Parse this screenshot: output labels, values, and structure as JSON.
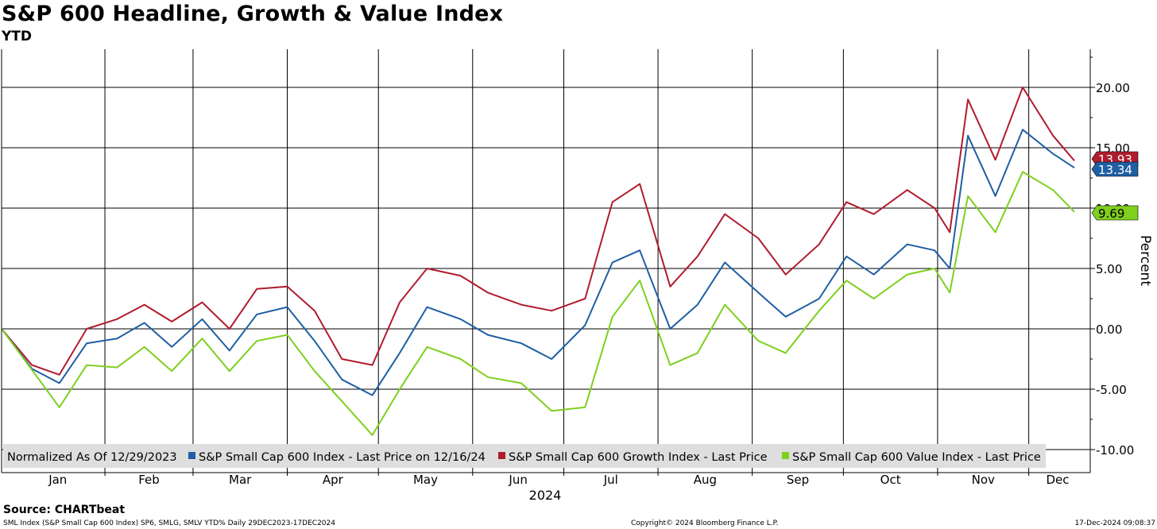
{
  "header": {
    "title": "S&P 600 Headline, Growth & Value Index",
    "subtitle": "YTD"
  },
  "footer": {
    "source": "Source: CHARTbeat",
    "left_note": "SML Index (S&P Small Cap 600 Index) SP6, SMLG, SMLV YTD%  Daily 29DEC2023-17DEC2024",
    "copyright": "Copyright© 2024 Bloomberg Finance L.P.",
    "timestamp": "17-Dec-2024 09:08:37"
  },
  "chart_data": {
    "type": "line",
    "title": "S&P 600 Headline, Growth & Value Index",
    "subtitle": "YTD",
    "xlabel": "2024",
    "ylabel": "Percent",
    "ylim": [
      -10,
      20
    ],
    "y_ticks": [
      20,
      15,
      10,
      5,
      0,
      -5,
      -10
    ],
    "y_tick_labels": [
      "20.00",
      "15.00",
      "10.00",
      "5.00",
      "0.00",
      "-5.00",
      "-10.00"
    ],
    "months": [
      "Jan",
      "Feb",
      "Mar",
      "Apr",
      "May",
      "Jun",
      "Jul",
      "Aug",
      "Sep",
      "Oct",
      "Nov",
      "Dec"
    ],
    "grid": true,
    "legend_position": "bottom",
    "legend_note": "Normalized As Of 12/29/2023",
    "x_dates": [
      "2023-12-29",
      "2024-01-08",
      "2024-01-17",
      "2024-01-26",
      "2024-02-05",
      "2024-02-14",
      "2024-02-23",
      "2024-03-04",
      "2024-03-13",
      "2024-03-22",
      "2024-04-01",
      "2024-04-10",
      "2024-04-19",
      "2024-04-29",
      "2024-05-08",
      "2024-05-17",
      "2024-05-28",
      "2024-06-06",
      "2024-06-17",
      "2024-06-27",
      "2024-07-08",
      "2024-07-17",
      "2024-07-26",
      "2024-08-05",
      "2024-08-14",
      "2024-08-23",
      "2024-09-03",
      "2024-09-12",
      "2024-09-23",
      "2024-10-02",
      "2024-10-11",
      "2024-10-22",
      "2024-10-31",
      "2024-11-05",
      "2024-11-11",
      "2024-11-20",
      "2024-11-29",
      "2024-12-09",
      "2024-12-16"
    ],
    "series": [
      {
        "name": "S&P Small Cap 600 Index - Last Price on 12/16/24",
        "color": "#1f5fa3",
        "last_label": "13.34",
        "values": [
          0.0,
          -3.3,
          -4.5,
          -1.2,
          -0.8,
          0.5,
          -1.5,
          0.8,
          -1.8,
          1.2,
          1.8,
          -1.0,
          -4.2,
          -5.5,
          -2.0,
          1.8,
          0.8,
          -0.5,
          -1.2,
          -2.5,
          0.3,
          5.5,
          6.5,
          0.0,
          2.0,
          5.5,
          3.0,
          1.0,
          2.5,
          6.0,
          4.5,
          7.0,
          6.5,
          5.0,
          16.0,
          11.0,
          16.5,
          14.5,
          13.34
        ]
      },
      {
        "name": "S&P Small Cap 600 Growth Index - Last Price",
        "color": "#b01c2e",
        "last_label": "13.93",
        "values": [
          0.0,
          -3.0,
          -3.8,
          0.0,
          0.8,
          2.0,
          0.6,
          2.2,
          0.0,
          3.3,
          3.5,
          1.5,
          -2.5,
          -3.0,
          2.2,
          5.0,
          4.4,
          3.0,
          2.0,
          1.5,
          2.5,
          10.5,
          12.0,
          3.5,
          6.0,
          9.5,
          7.5,
          4.5,
          7.0,
          10.5,
          9.5,
          11.5,
          10.0,
          8.0,
          19.0,
          14.0,
          20.0,
          16.0,
          13.93
        ]
      },
      {
        "name": "S&P Small Cap 600 Value Index - Last Price",
        "color": "#7fcf1f",
        "last_label": "9.69",
        "values": [
          0.0,
          -3.4,
          -6.5,
          -3.0,
          -3.2,
          -1.5,
          -3.5,
          -0.8,
          -3.5,
          -1.0,
          -0.5,
          -3.5,
          -6.0,
          -8.8,
          -5.0,
          -1.5,
          -2.5,
          -4.0,
          -4.5,
          -6.8,
          -6.5,
          1.0,
          4.0,
          -3.0,
          -2.0,
          2.0,
          -1.0,
          -2.0,
          1.5,
          4.0,
          2.5,
          4.5,
          5.0,
          3.0,
          11.0,
          8.0,
          13.0,
          11.5,
          9.69
        ]
      }
    ]
  }
}
